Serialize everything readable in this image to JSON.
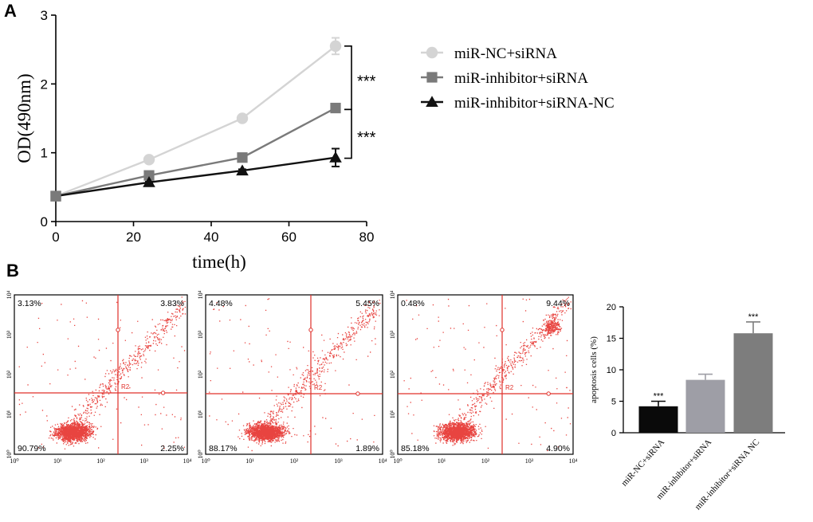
{
  "panel_labels": {
    "a": "A",
    "b": "B"
  },
  "chart_data": [
    {
      "type": "line",
      "panel": "A",
      "xlabel": "time(h)",
      "ylabel": "OD(490nm)",
      "xlim": [
        0,
        80
      ],
      "ylim": [
        0,
        3
      ],
      "x_ticks": [
        0,
        20,
        40,
        60,
        80
      ],
      "y_ticks": [
        0,
        1,
        2,
        3
      ],
      "series": [
        {
          "name": "miR-NC+siRNA",
          "marker": "circle",
          "color": "#d4d4d4",
          "x": [
            0,
            24,
            48,
            72
          ],
          "y": [
            0.37,
            0.9,
            1.5,
            2.55
          ],
          "err": [
            0,
            0.04,
            0.02,
            0.12
          ]
        },
        {
          "name": "miR-inhibitor+siRNA",
          "marker": "square",
          "color": "#7a7a7a",
          "x": [
            0,
            24,
            48,
            72
          ],
          "y": [
            0.37,
            0.67,
            0.93,
            1.65
          ],
          "err": [
            0,
            0.02,
            0.02,
            0.03
          ]
        },
        {
          "name": "miR-inhibitor+siRNA-NC",
          "marker": "triangle",
          "color": "#111111",
          "x": [
            0,
            24,
            48,
            72
          ],
          "y": [
            0.37,
            0.57,
            0.74,
            0.93
          ],
          "err": [
            0,
            0.01,
            0.02,
            0.13
          ]
        }
      ],
      "significance": [
        {
          "label": "***",
          "from": 2.55,
          "to": 1.63
        },
        {
          "label": "***",
          "from": 1.63,
          "to": 0.92
        }
      ]
    },
    {
      "type": "scatter",
      "panel": "B",
      "subtype": "flow-cytometry-quadrants",
      "axis_ticks": [
        "10⁰",
        "10¹",
        "10²",
        "10³",
        "10⁴"
      ],
      "gate_label": "R2",
      "plots": [
        {
          "quadrants": {
            "ul": "3.13%",
            "ur": "3.83%",
            "ll": "90.79%",
            "lr": "2.25%"
          }
        },
        {
          "quadrants": {
            "ul": "4.48%",
            "ur": "5.45%",
            "ll": "88.17%",
            "lr": "1.89%"
          }
        },
        {
          "quadrants": {
            "ul": "0.48%",
            "ur": "9.44%",
            "ll": "85.18%",
            "lr": "4.90%"
          }
        }
      ]
    },
    {
      "type": "bar",
      "panel": "B",
      "ylabel": "apoptosis cells (%)",
      "ylim": [
        0,
        20
      ],
      "y_ticks": [
        0,
        5,
        10,
        15,
        20
      ],
      "categories": [
        "miR-NC+siRNA",
        "miR-inhibitor+siRNA",
        "miR-inhibitor+siRNA NC"
      ],
      "values": [
        4.2,
        8.4,
        15.8
      ],
      "err": [
        0.8,
        0.9,
        1.8
      ],
      "colors": [
        "#0a0a0a",
        "#9e9ea6",
        "#7d7d7d"
      ],
      "annotations": [
        "***",
        "",
        "***"
      ]
    }
  ]
}
